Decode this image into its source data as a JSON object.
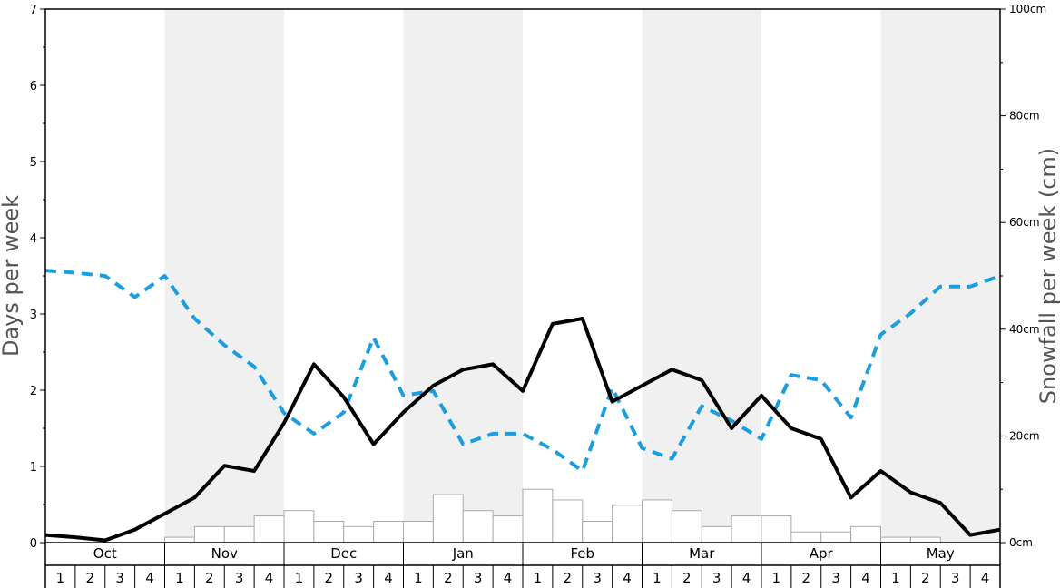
{
  "chart_data": {
    "type": "bar+line",
    "title": "",
    "ylabel": "Days per week",
    "ylabel_right": "Snowfall per week (cm)",
    "ylim": [
      0,
      7
    ],
    "ylim_right": [
      0,
      100
    ],
    "yticks_left": [
      "0",
      "1",
      "2",
      "3",
      "4",
      "5",
      "6",
      "7"
    ],
    "yticks_right": [
      "0cm",
      "20cm",
      "40cm",
      "60cm",
      "80cm",
      "100cm"
    ],
    "months": [
      "Oct",
      "Nov",
      "Dec",
      "Jan",
      "Feb",
      "Mar",
      "Apr",
      "May"
    ],
    "week_labels": [
      "1",
      "2",
      "3",
      "4"
    ],
    "colors": {
      "solid_line": "#000000",
      "dashed_line": "#1a9ee0",
      "bars_fill": "#ffffff",
      "bars_stroke": "#aaaaaa",
      "band_shade": "#f0f0f0"
    },
    "snowfall_bars_cm": [
      0,
      0,
      0,
      0,
      1,
      3,
      3,
      5,
      6,
      4,
      3,
      4,
      4,
      9,
      6,
      5,
      10,
      8,
      4,
      7,
      8,
      6,
      3,
      5,
      5,
      2,
      2,
      3,
      1,
      1,
      0,
      0
    ],
    "solid_series_days": [
      0.1,
      0.07,
      0.03,
      0.17,
      0.38,
      0.59,
      1.01,
      0.94,
      1.57,
      2.34,
      1.91,
      1.29,
      1.71,
      2.06,
      2.27,
      2.34,
      1.99,
      2.87,
      2.94,
      1.85,
      2.06,
      2.27,
      2.13,
      1.5,
      1.93,
      1.5,
      1.36,
      0.59,
      0.94,
      0.66,
      0.52,
      0.1,
      0.17
    ],
    "dashed_series_days": [
      3.57,
      3.54,
      3.5,
      3.22,
      3.5,
      2.94,
      2.59,
      2.31,
      1.7,
      1.43,
      1.71,
      2.69,
      1.93,
      1.99,
      1.29,
      1.43,
      1.43,
      1.22,
      0.94,
      2.03,
      1.24,
      1.1,
      1.79,
      1.6,
      1.36,
      2.2,
      2.13,
      1.64,
      2.73,
      3.01,
      3.36,
      3.36,
      3.5
    ]
  }
}
